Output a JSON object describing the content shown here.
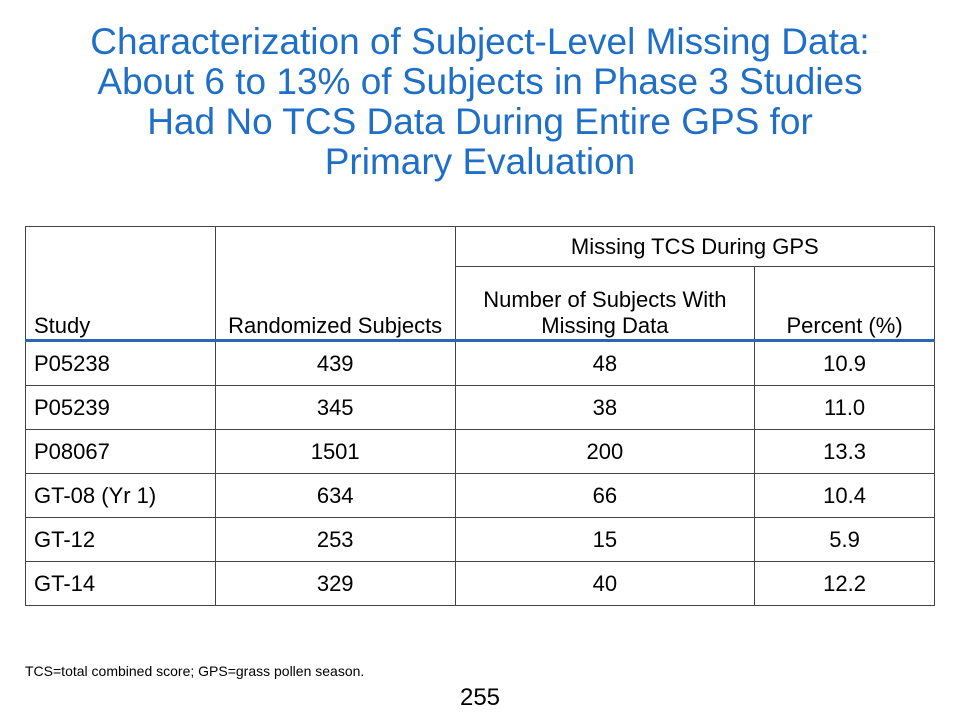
{
  "title": {
    "lines": [
      "Characterization of Subject-Level Missing Data:",
      "About 6 to 13% of Subjects in Phase 3 Studies",
      "Had No TCS Data During Entire GPS for",
      "Primary Evaluation"
    ]
  },
  "table": {
    "headers": {
      "study": "Study",
      "randomized": "Randomized Subjects",
      "group": "Missing TCS During GPS",
      "number_missing": "Number of Subjects With Missing Data",
      "percent": "Percent (%)"
    },
    "rows": [
      {
        "study": "P05238",
        "randomized": "439",
        "missing": "48",
        "percent": "10.9"
      },
      {
        "study": "P05239",
        "randomized": "345",
        "missing": "38",
        "percent": "11.0"
      },
      {
        "study": "P08067",
        "randomized": "1501",
        "missing": "200",
        "percent": "13.3"
      },
      {
        "study": "GT-08 (Yr 1)",
        "randomized": "634",
        "missing": "66",
        "percent": "10.4"
      },
      {
        "study": "GT-12",
        "randomized": "253",
        "missing": "15",
        "percent": "5.9"
      },
      {
        "study": "GT-14",
        "randomized": "329",
        "missing": "40",
        "percent": "12.2"
      }
    ]
  },
  "footnote": "TCS=total combined score; GPS=grass pollen season.",
  "page_number": "255",
  "colors": {
    "title": "#1F6FC6",
    "header_rule": "#2A66B8"
  }
}
